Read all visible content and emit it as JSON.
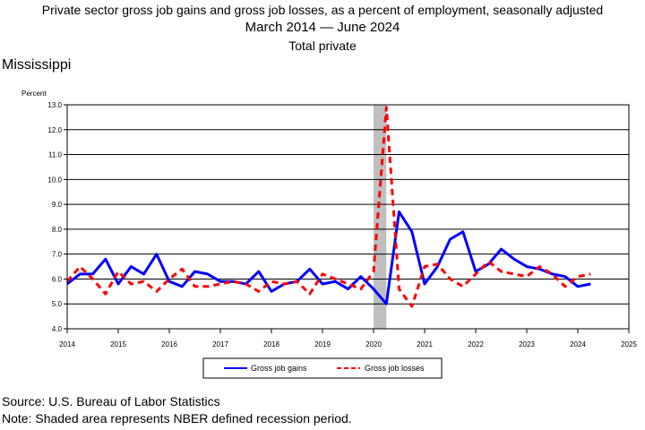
{
  "title": {
    "line1": "Private sector gross job gains and gross job losses, as a percent of employment, seasonally adjusted",
    "line2_start": "March 2014",
    "line2_end": "June 2024",
    "line3": "Total private"
  },
  "state": "Mississippi",
  "footer": {
    "source": "Source: U.S. Bureau of Labor Statistics",
    "note": "Note: Shaded area represents NBER defined recession period."
  },
  "chart_data": {
    "type": "line",
    "ylabel": "Percent",
    "ylim": [
      4.0,
      13.0
    ],
    "yticks": [
      "4.0",
      "5.0",
      "6.0",
      "7.0",
      "8.0",
      "9.0",
      "10.0",
      "11.0",
      "12.0",
      "13.0"
    ],
    "xlim": [
      2014,
      2025
    ],
    "xticks": [
      "2014",
      "2015",
      "2016",
      "2017",
      "2018",
      "2019",
      "2020",
      "2021",
      "2022",
      "2023",
      "2024",
      "2025"
    ],
    "grid": "horizontal",
    "recession": [
      2020.0,
      2020.25
    ],
    "legend_position": "bottom-center",
    "colors": {
      "gains": "#0000ff",
      "losses": "#ff0000",
      "recession": "#bfbfbf"
    },
    "x": [
      2014.0,
      2014.25,
      2014.5,
      2014.75,
      2015.0,
      2015.25,
      2015.5,
      2015.75,
      2016.0,
      2016.25,
      2016.5,
      2016.75,
      2017.0,
      2017.25,
      2017.5,
      2017.75,
      2018.0,
      2018.25,
      2018.5,
      2018.75,
      2019.0,
      2019.25,
      2019.5,
      2019.75,
      2020.0,
      2020.25,
      2020.5,
      2020.75,
      2021.0,
      2021.25,
      2021.5,
      2021.75,
      2022.0,
      2022.25,
      2022.5,
      2022.75,
      2023.0,
      2023.25,
      2023.5,
      2023.75,
      2024.0,
      2024.25
    ],
    "series": [
      {
        "name": "Gross job gains",
        "style": "solid",
        "values": [
          5.8,
          6.2,
          6.2,
          6.8,
          5.8,
          6.5,
          6.2,
          7.0,
          5.9,
          5.7,
          6.3,
          6.2,
          5.9,
          5.9,
          5.8,
          6.3,
          5.5,
          5.8,
          5.9,
          6.4,
          5.8,
          5.9,
          5.6,
          6.1,
          5.6,
          5.0,
          8.7,
          7.9,
          5.8,
          6.5,
          7.6,
          7.9,
          6.3,
          6.6,
          7.2,
          6.8,
          6.5,
          6.4,
          6.2,
          6.1,
          5.7,
          5.8
        ]
      },
      {
        "name": "Gross job losses",
        "style": "dashed",
        "values": [
          5.9,
          6.5,
          6.0,
          5.4,
          6.3,
          5.8,
          5.9,
          5.5,
          6.0,
          6.4,
          5.7,
          5.7,
          5.8,
          5.9,
          5.8,
          5.5,
          5.9,
          5.8,
          5.9,
          5.4,
          6.2,
          6.0,
          5.8,
          5.6,
          6.3,
          12.9,
          5.6,
          4.9,
          6.5,
          6.6,
          6.0,
          5.7,
          6.2,
          6.7,
          6.3,
          6.2,
          6.1,
          6.5,
          6.2,
          5.7,
          6.1,
          6.2
        ]
      }
    ]
  }
}
